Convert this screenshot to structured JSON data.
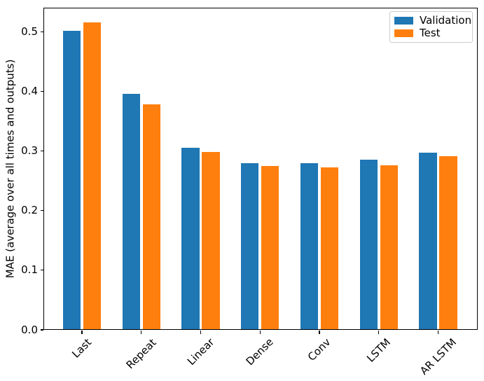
{
  "chart_data": {
    "type": "bar",
    "title": "",
    "xlabel": "",
    "ylabel": "MAE (average over all times and outputs)",
    "categories": [
      "Last",
      "Repeat",
      "Linear",
      "Dense",
      "Conv",
      "LSTM",
      "AR LSTM"
    ],
    "series": [
      {
        "name": "Validation",
        "color": "#1f77b4",
        "values": [
          0.502,
          0.396,
          0.305,
          0.28,
          0.28,
          0.285,
          0.297
        ]
      },
      {
        "name": "Test",
        "color": "#ff7f0e",
        "values": [
          0.516,
          0.378,
          0.298,
          0.275,
          0.273,
          0.276,
          0.291
        ]
      }
    ],
    "ylim": [
      0,
      0.5405
    ],
    "ytick_labels": [
      "0.0",
      "0.1",
      "0.2",
      "0.3",
      "0.4",
      "0.5"
    ],
    "x_tick_rotation_deg": 45,
    "grid": false,
    "legend": {
      "position": "upper right",
      "entries": [
        "Validation",
        "Test"
      ]
    },
    "axis_color": "#000000",
    "background": "#ffffff"
  }
}
